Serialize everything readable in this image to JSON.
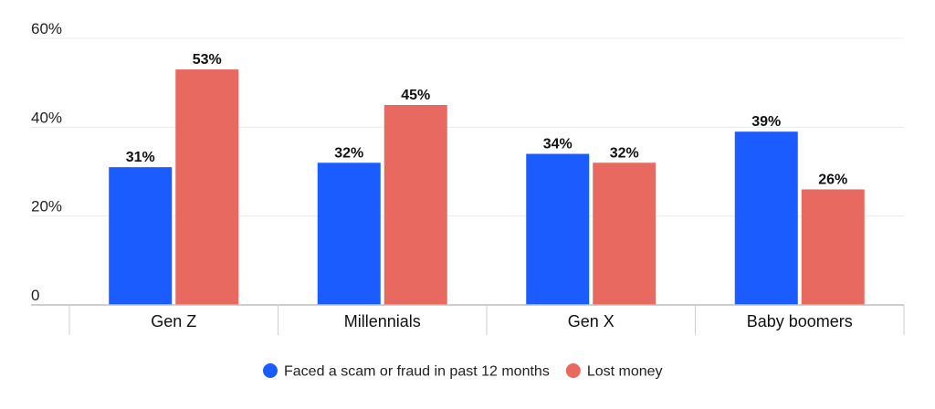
{
  "chart_data": {
    "type": "bar",
    "categories": [
      "Gen Z",
      "Millennials",
      "Gen X",
      "Baby boomers"
    ],
    "series": [
      {
        "name": "Faced a scam or fraud in past 12 months",
        "values": [
          31,
          32,
          34,
          39
        ],
        "labels": [
          "31%",
          "32%",
          "34%",
          "39%"
        ],
        "color": "#1a5cff"
      },
      {
        "name": "Lost money",
        "values": [
          53,
          45,
          32,
          26
        ],
        "labels": [
          "53%",
          "45%",
          "32%",
          "26%"
        ],
        "color": "#e8695f"
      }
    ],
    "ylim": [
      0,
      60
    ],
    "yticks": [
      {
        "value": 0,
        "label": "0"
      },
      {
        "value": 20,
        "label": "20%"
      },
      {
        "value": 40,
        "label": "40%"
      },
      {
        "value": 60,
        "label": "60%"
      }
    ],
    "title": "",
    "xlabel": "",
    "ylabel": "",
    "grid": true,
    "legend_position": "bottom-center"
  }
}
